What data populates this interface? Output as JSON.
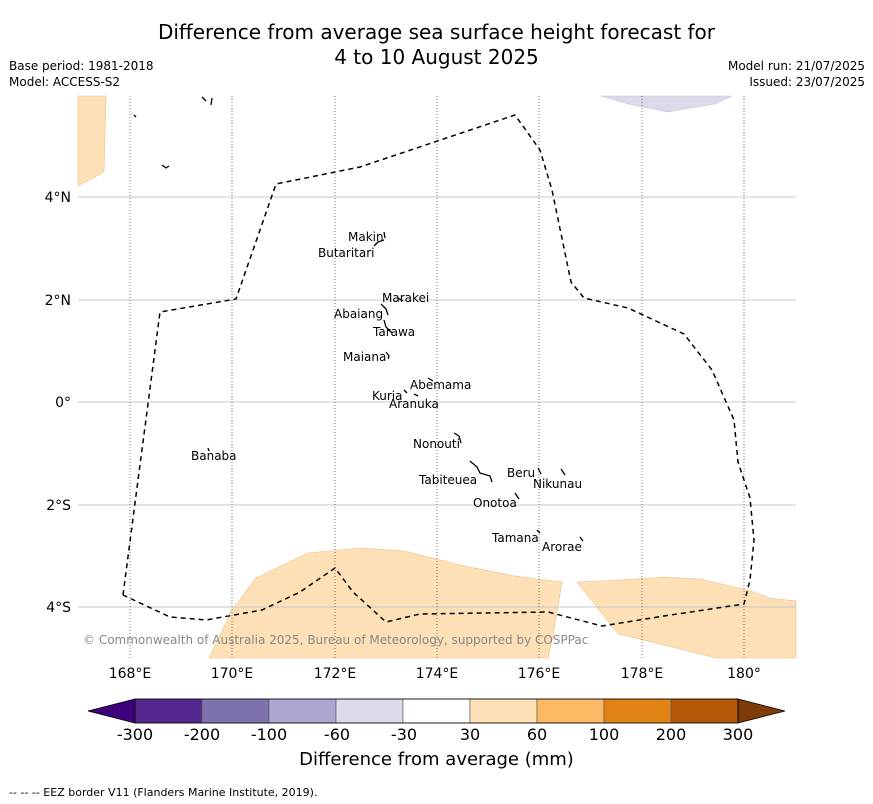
{
  "title_line1": "Difference from average sea surface height forecast for",
  "title_line2": "4 to 10 August 2025",
  "meta_left": [
    "Base period: 1981-2018",
    "Model: ACCESS-S2"
  ],
  "meta_right": [
    "Model run: 21/07/2025",
    "Issued: 23/07/2025"
  ],
  "lat_ticks": [
    "4°N",
    "2°N",
    "0°",
    "2°S",
    "4°S"
  ],
  "lon_ticks": [
    "168°E",
    "170°E",
    "172°E",
    "174°E",
    "176°E",
    "178°E",
    "180°"
  ],
  "places": [
    "Makin",
    "Butaritari",
    "Marakei",
    "Abaiang",
    "Tarawa",
    "Maiana",
    "Abemama",
    "Kuria",
    "Aranuka",
    "Nonouti",
    "Banaba",
    "Beru",
    "Tabiteuea",
    "Nikunau",
    "Onotoa",
    "Tamana",
    "Arorae"
  ],
  "copyright": "© Commonwealth of Australia 2025, Bureau of Meteorology, supported by COSPPac",
  "colorbar": {
    "ticks": [
      "-300",
      "-200",
      "-100",
      "-60",
      "-30",
      "30",
      "60",
      "100",
      "200",
      "300"
    ],
    "colors": [
      "#3f007d",
      "#54278f",
      "#7e71ae",
      "#aca7d0",
      "#dadaeb",
      "#ffffff",
      "#fee0b6",
      "#fdb863",
      "#e08214",
      "#b35806",
      "#7f3b08"
    ],
    "label": "Difference from average (mm)"
  },
  "footer": "--  --  -- EEZ border V11 (Flanders Marine Institute, 2019)."
}
